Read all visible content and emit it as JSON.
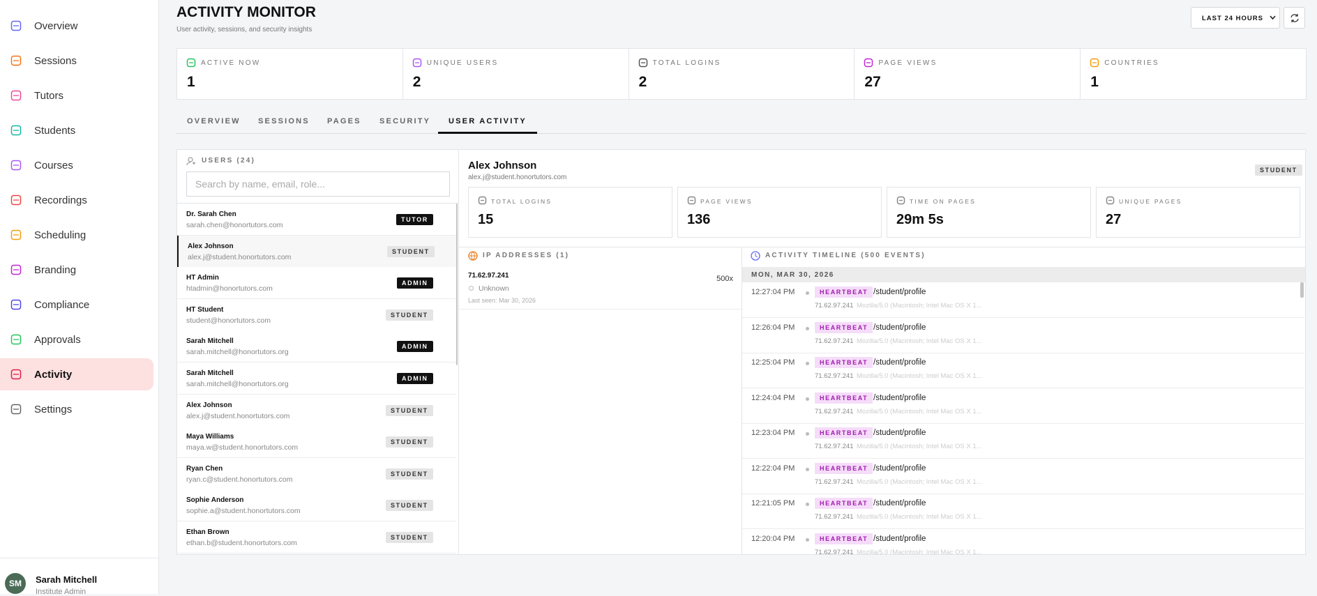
{
  "sidebar": {
    "nav": [
      "Overview",
      "Sessions",
      "Tutors",
      "Students",
      "Courses",
      "Recordings",
      "Scheduling",
      "Branding",
      "Compliance",
      "Approvals",
      "Activity",
      "Settings"
    ],
    "active": 10,
    "user": {
      "initials": "SM",
      "name": "Sarah Mitchell",
      "role": "Institute Admin"
    }
  },
  "header": {
    "title": "ACTIVITY MONITOR",
    "subtitle": "User activity, sessions, and security insights",
    "range": "LAST 24 HOURS"
  },
  "stats": [
    {
      "label": "ACTIVE NOW",
      "value": 1
    },
    {
      "label": "UNIQUE USERS",
      "value": 2
    },
    {
      "label": "TOTAL LOGINS",
      "value": 2
    },
    {
      "label": "PAGE VIEWS",
      "value": 27
    },
    {
      "label": "COUNTRIES",
      "value": 1
    }
  ],
  "tabs": [
    "OVERVIEW",
    "SESSIONS",
    "PAGES",
    "SECURITY",
    "USER ACTIVITY"
  ],
  "active_tab": 4,
  "users_panel": {
    "title": "USERS (24)",
    "search_placeholder": "Search by name, email, role...",
    "selected": 1,
    "users": [
      {
        "name": "Dr. Sarah Chen",
        "email": "sarah.chen@honortutors.com",
        "role": "TUTOR"
      },
      {
        "name": "Alex Johnson",
        "email": "alex.j@student.honortutors.com",
        "role": "STUDENT"
      },
      {
        "name": "HT Admin",
        "email": "htadmin@honortutors.com",
        "role": "ADMIN"
      },
      {
        "name": "HT Student",
        "email": "student@honortutors.com",
        "role": "STUDENT"
      },
      {
        "name": "Sarah Mitchell",
        "email": "sarah.mitchell@honortutors.org",
        "role": "ADMIN"
      },
      {
        "name": "Sarah Mitchell",
        "email": "sarah.mitchell@honortutors.org",
        "role": "ADMIN"
      },
      {
        "name": "Alex Johnson",
        "email": "alex.j@student.honortutors.com",
        "role": "STUDENT"
      },
      {
        "name": "Maya Williams",
        "email": "maya.w@student.honortutors.com",
        "role": "STUDENT"
      },
      {
        "name": "Ryan Chen",
        "email": "ryan.c@student.honortutors.com",
        "role": "STUDENT"
      },
      {
        "name": "Sophie Anderson",
        "email": "sophie.a@student.honortutors.com",
        "role": "STUDENT"
      },
      {
        "name": "Ethan Brown",
        "email": "ethan.b@student.honortutors.com",
        "role": "STUDENT"
      }
    ]
  },
  "detail": {
    "name": "Alex Johnson",
    "email": "alex.j@student.honortutors.com",
    "role": "STUDENT",
    "stats": [
      {
        "label": "TOTAL LOGINS",
        "value": 15
      },
      {
        "label": "PAGE VIEWS",
        "value": 136
      },
      {
        "label": "TIME ON PAGES",
        "value": "29m 5s"
      },
      {
        "label": "UNIQUE PAGES",
        "value": 27
      }
    ],
    "ip": {
      "title": "IP ADDRESSES (1)",
      "rows": [
        {
          "ip": "71.62.97.241",
          "count": "500x",
          "location": "Unknown",
          "last_seen": "Last seen: Mar 30, 2026"
        }
      ]
    },
    "timeline": {
      "title": "ACTIVITY TIMELINE (500 EVENTS)",
      "date": "MON, MAR 30, 2026",
      "events": [
        {
          "time": "12:27:04 PM",
          "type": "HEARTBEAT",
          "path": "/student/profile",
          "ip": "71.62.97.241",
          "agent": "Mozilla/5.0 (Macintosh; Intel Mac OS X 1..."
        },
        {
          "time": "12:26:04 PM",
          "type": "HEARTBEAT",
          "path": "/student/profile",
          "ip": "71.62.97.241",
          "agent": "Mozilla/5.0 (Macintosh; Intel Mac OS X 1..."
        },
        {
          "time": "12:25:04 PM",
          "type": "HEARTBEAT",
          "path": "/student/profile",
          "ip": "71.62.97.241",
          "agent": "Mozilla/5.0 (Macintosh; Intel Mac OS X 1..."
        },
        {
          "time": "12:24:04 PM",
          "type": "HEARTBEAT",
          "path": "/student/profile",
          "ip": "71.62.97.241",
          "agent": "Mozilla/5.0 (Macintosh; Intel Mac OS X 1..."
        },
        {
          "time": "12:23:04 PM",
          "type": "HEARTBEAT",
          "path": "/student/profile",
          "ip": "71.62.97.241",
          "agent": "Mozilla/5.0 (Macintosh; Intel Mac OS X 1..."
        },
        {
          "time": "12:22:04 PM",
          "type": "HEARTBEAT",
          "path": "/student/profile",
          "ip": "71.62.97.241",
          "agent": "Mozilla/5.0 (Macintosh; Intel Mac OS X 1..."
        },
        {
          "time": "12:21:05 PM",
          "type": "HEARTBEAT",
          "path": "/student/profile",
          "ip": "71.62.97.241",
          "agent": "Mozilla/5.0 (Macintosh; Intel Mac OS X 1..."
        },
        {
          "time": "12:20:04 PM",
          "type": "HEARTBEAT",
          "path": "/student/profile",
          "ip": "71.62.97.241",
          "agent": "Mozilla/5.0 (Macintosh; Intel Mac OS X 1..."
        }
      ]
    }
  }
}
